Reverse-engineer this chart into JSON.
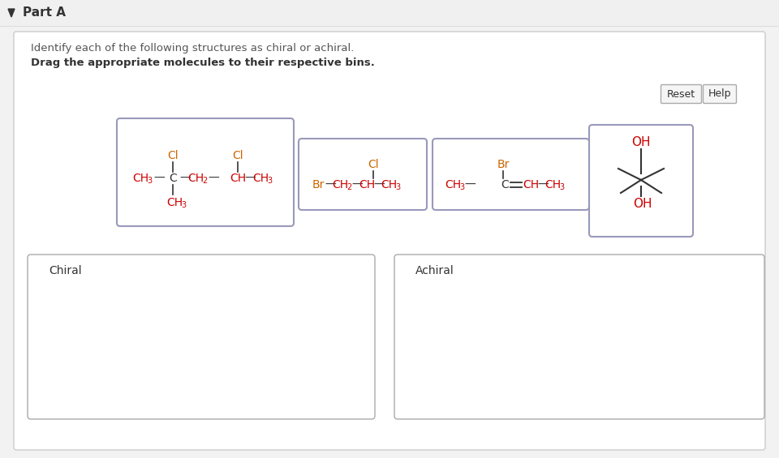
{
  "background_color": "#f2f2f2",
  "header_color": "#f0f0f0",
  "white": "#ffffff",
  "panel_bg": "#f8f8f8",
  "title": "Part A",
  "instruction1": "Identify each of the following structures as chiral or achiral.",
  "instruction2": "Drag the appropriate molecules to their respective bins.",
  "reset_label": "Reset",
  "help_label": "Help",
  "bin_labels": [
    "Chiral",
    "Achiral"
  ],
  "red": "#cc0000",
  "orange": "#cc6600",
  "dark": "#333333",
  "gray": "#888888",
  "mol_border": "#9999bb",
  "bin_border": "#aaaaaa"
}
